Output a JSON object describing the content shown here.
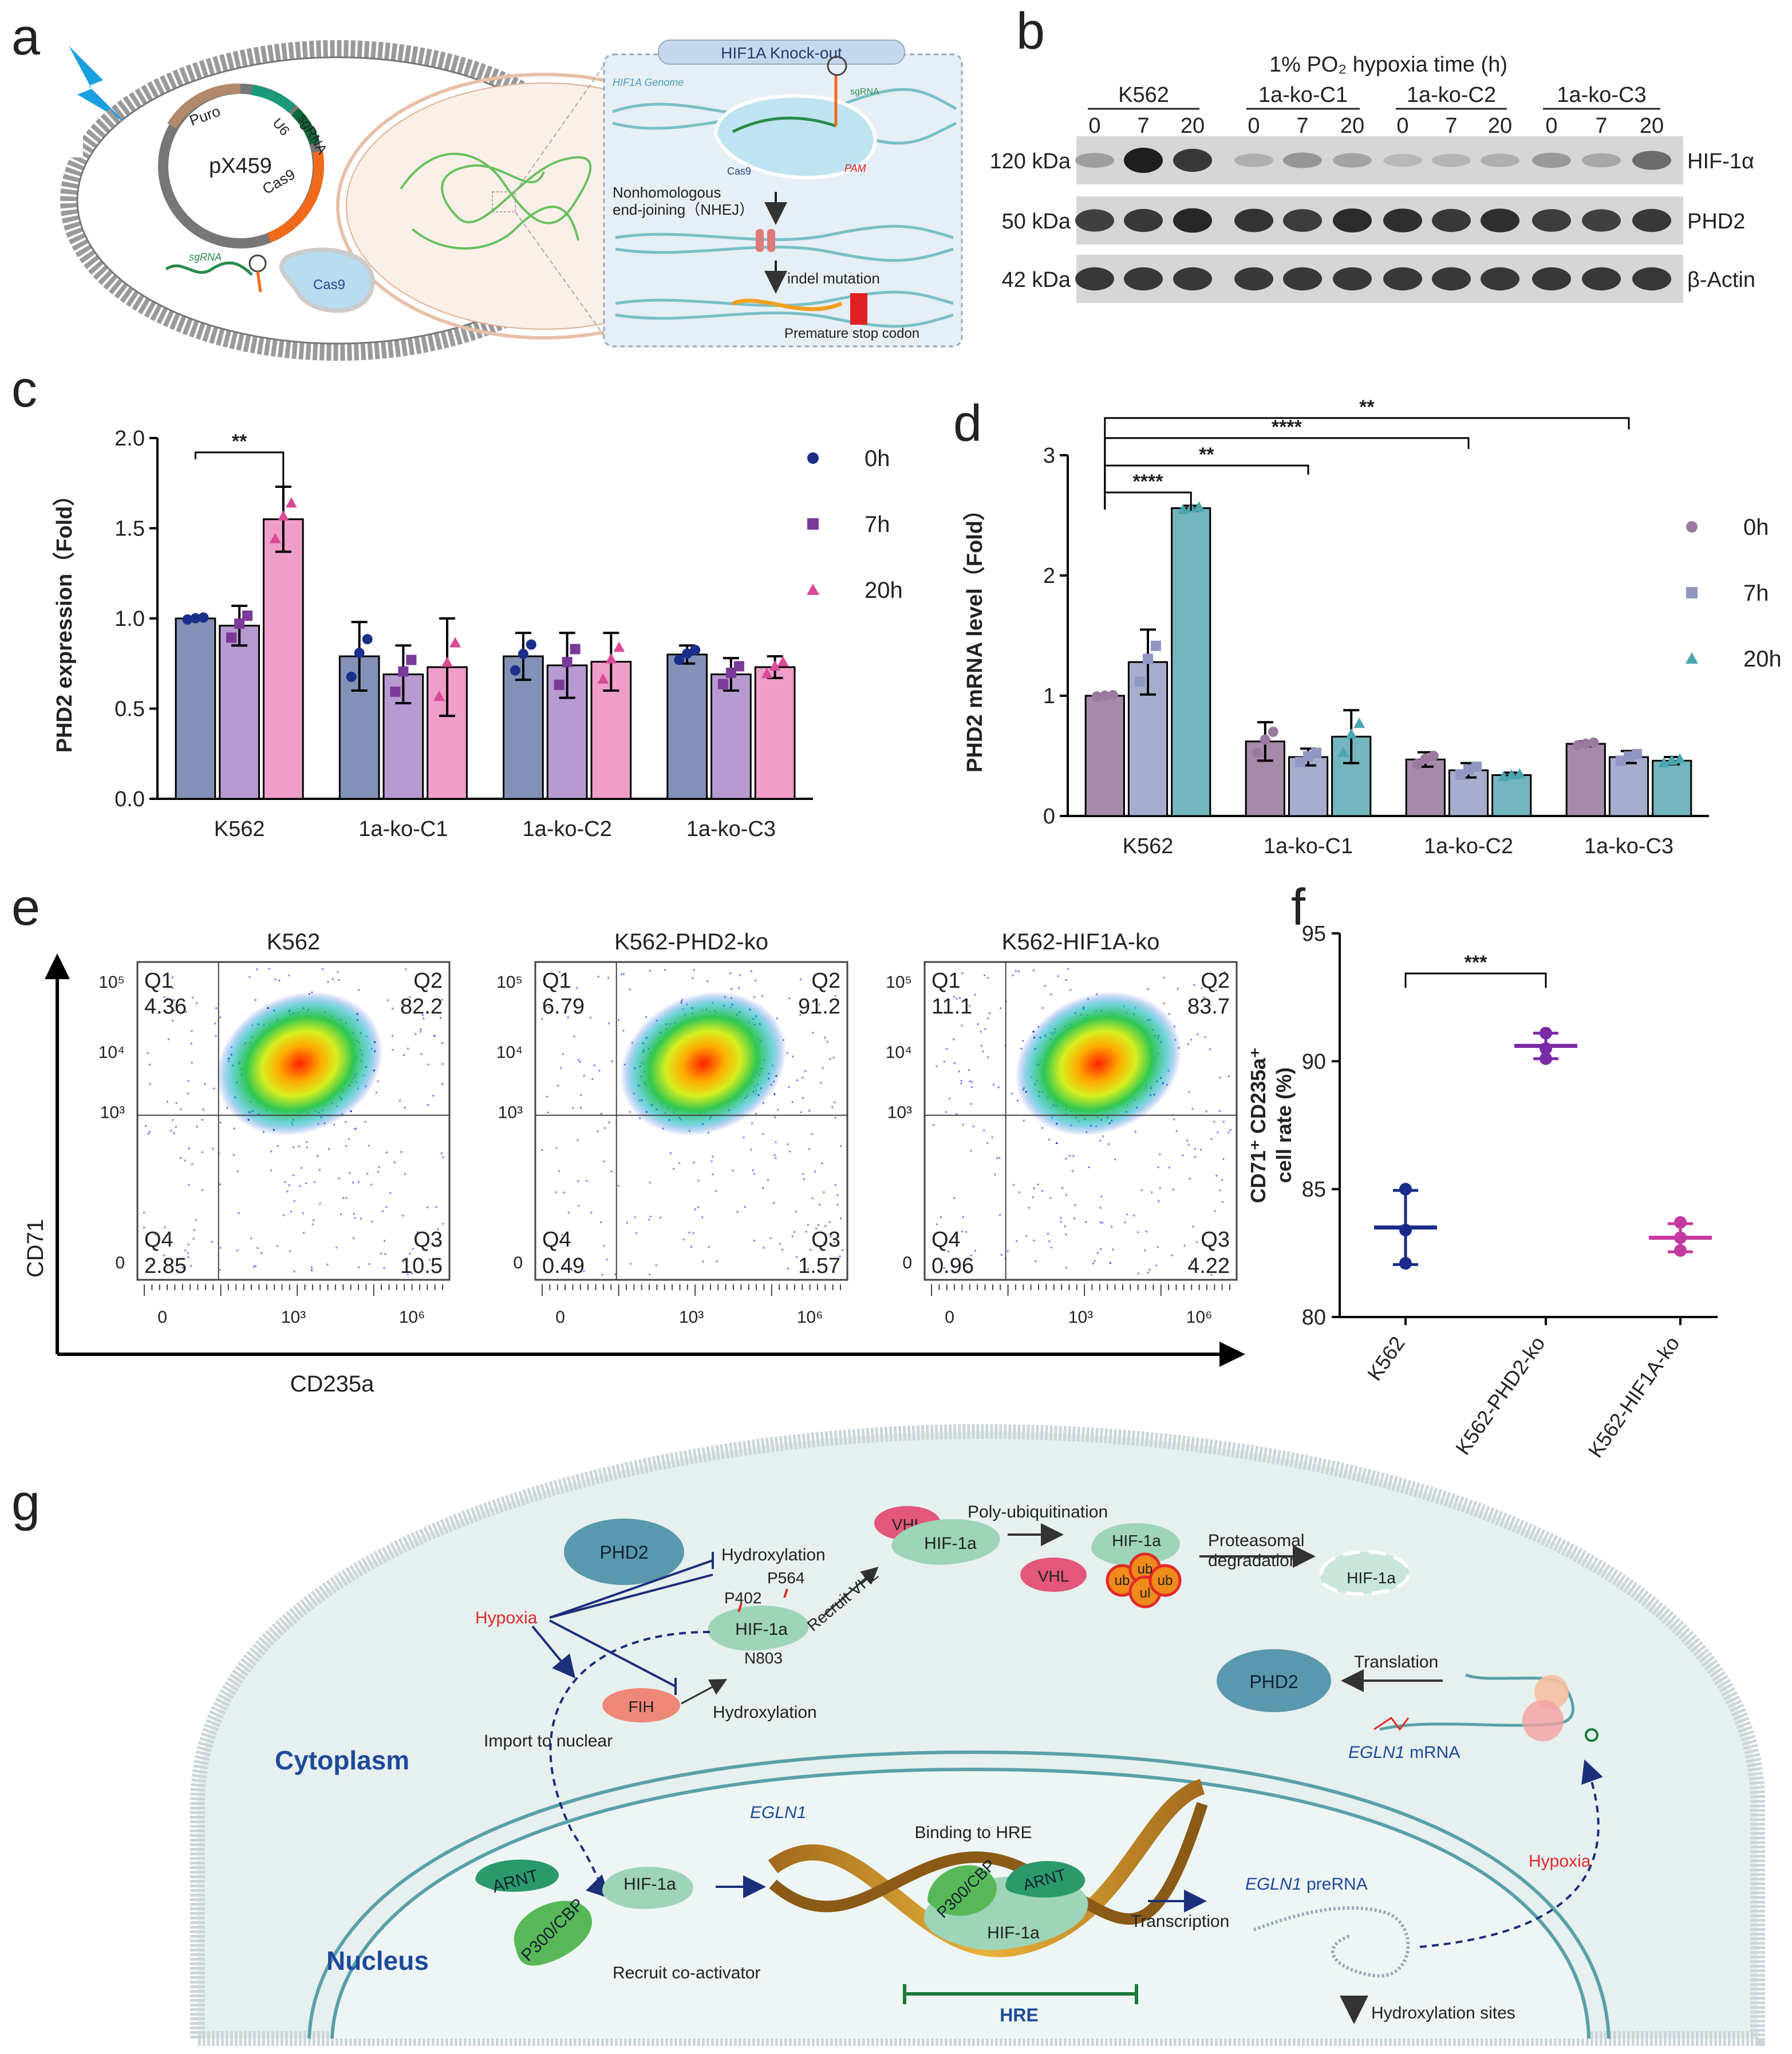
{
  "panel_letters": {
    "a": "a",
    "b": "b",
    "c": "c",
    "d": "d",
    "e": "e",
    "f": "f",
    "g": "g"
  },
  "panel_a": {
    "plasmid_name": "pX459",
    "puro": "Puro",
    "u6": "U6",
    "sgrna": "sgRNA",
    "cas9": "Cas9",
    "sgrna_free": "sgRNA",
    "cas9_protein": "Cas9",
    "ko_title": "HIF1A Knock-out",
    "genome_label": "HIF1A Genome",
    "inset_sgrna": "sgRNA",
    "inset_cas9": "Cas9",
    "pam": "PAM",
    "nhej_line1": "Nonhomologous",
    "nhej_line2": "end-joining（NHEJ）",
    "indel": "indel mutation",
    "stop": "Premature stop codon"
  },
  "panel_b": {
    "header": "1% PO₂ hypoxia time (h)",
    "groups": [
      {
        "name": "K562",
        "times": [
          "0",
          "7",
          "20"
        ]
      },
      {
        "name": "1a-ko-C1",
        "times": [
          "0",
          "7",
          "20"
        ]
      },
      {
        "name": "1a-ko-C2",
        "times": [
          "0",
          "7",
          "20"
        ]
      },
      {
        "name": "1a-ko-C3",
        "times": [
          "0",
          "7",
          "20"
        ]
      }
    ],
    "blots": [
      {
        "mw": "120 kDa",
        "protein": "HIF-1α",
        "intensity": [
          0.25,
          1.0,
          0.85,
          0.15,
          0.3,
          0.22,
          0.1,
          0.12,
          0.15,
          0.28,
          0.2,
          0.55
        ]
      },
      {
        "mw": "50 kDa",
        "protein": "PHD2",
        "intensity": [
          0.8,
          0.85,
          0.95,
          0.88,
          0.82,
          0.92,
          0.9,
          0.85,
          0.9,
          0.82,
          0.8,
          0.85
        ]
      },
      {
        "mw": "42 kDa",
        "protein": "β-Actin",
        "intensity": [
          0.85,
          0.85,
          0.85,
          0.85,
          0.85,
          0.85,
          0.85,
          0.85,
          0.85,
          0.85,
          0.85,
          0.85
        ]
      }
    ]
  },
  "chart_data": [
    {
      "panel": "c",
      "type": "bar",
      "title": "",
      "ylabel": "PHD2 expression（Fold）",
      "xlabel": "",
      "ylim": [
        0,
        2.0
      ],
      "yticks": [
        "0.0",
        "0.5",
        "1.0",
        "1.5",
        "2.0"
      ],
      "categories": [
        "K562",
        "1a-ko-C1",
        "1a-ko-C2",
        "1a-ko-C3"
      ],
      "series": [
        {
          "name": "0h",
          "color": "#8491b6",
          "dot": "#1a2f8a",
          "values": [
            1.0,
            0.79,
            0.79,
            0.8
          ],
          "errors": [
            0.01,
            0.19,
            0.13,
            0.05
          ]
        },
        {
          "name": "7h",
          "color": "#b69ad0",
          "dot": "#7a3a9a",
          "values": [
            0.96,
            0.69,
            0.74,
            0.69
          ],
          "errors": [
            0.11,
            0.16,
            0.18,
            0.09
          ]
        },
        {
          "name": "20h",
          "color": "#ee9ec9",
          "dot": "#d84b97",
          "values": [
            1.55,
            0.73,
            0.76,
            0.73
          ],
          "errors": [
            0.18,
            0.27,
            0.16,
            0.06
          ]
        }
      ],
      "significance": [
        {
          "label": "**",
          "from": "K562 0h",
          "to": "K562 20h"
        }
      ],
      "legend_position": "right"
    },
    {
      "panel": "d",
      "type": "bar",
      "title": "",
      "ylabel": "PHD2 mRNA level（Fold）",
      "xlabel": "",
      "ylim": [
        0,
        3
      ],
      "yticks": [
        "0",
        "1",
        "2",
        "3"
      ],
      "categories": [
        "K562",
        "1a-ko-C1",
        "1a-ko-C2",
        "1a-ko-C3"
      ],
      "series": [
        {
          "name": "0h",
          "color": "#a68aa9",
          "dot": "#9a7a9e",
          "values": [
            1.0,
            0.62,
            0.47,
            0.6
          ],
          "errors": [
            0.01,
            0.16,
            0.06,
            0.02
          ]
        },
        {
          "name": "7h",
          "color": "#a7adcc",
          "dot": "#8f97c2",
          "values": [
            1.28,
            0.49,
            0.38,
            0.49
          ],
          "errors": [
            0.27,
            0.07,
            0.06,
            0.05
          ]
        },
        {
          "name": "20h",
          "color": "#74b6be",
          "dot": "#4aa6b0",
          "values": [
            2.56,
            0.66,
            0.34,
            0.46
          ],
          "errors": [
            0.02,
            0.22,
            0.02,
            0.03
          ]
        }
      ],
      "significance": [
        {
          "label": "****",
          "from": "K562 0h",
          "to": "K562 20h"
        },
        {
          "label": "**",
          "from": "K562 0h",
          "to": "1a-ko-C1"
        },
        {
          "label": "****",
          "from": "K562 0h",
          "to": "1a-ko-C2"
        },
        {
          "label": "**",
          "from": "K562 0h",
          "to": "1a-ko-C3"
        }
      ],
      "legend_position": "right"
    },
    {
      "panel": "e",
      "type": "scatter",
      "xlabel": "CD235a",
      "ylabel": "CD71",
      "xticks": [
        "0",
        "10³",
        "10⁶"
      ],
      "yticks": [
        "0",
        "10³",
        "10⁴",
        "10⁵"
      ],
      "plots": [
        {
          "title": "K562",
          "Q1": "4.36",
          "Q2": "82.2",
          "Q3": "10.5",
          "Q4": "2.85"
        },
        {
          "title": "K562-PHD2-ko",
          "Q1": "6.79",
          "Q2": "91.2",
          "Q3": "1.57",
          "Q4": "0.49"
        },
        {
          "title": "K562-HIF1A-ko",
          "Q1": "11.1",
          "Q2": "83.7",
          "Q3": "4.22",
          "Q4": "0.96"
        }
      ],
      "quadrant_labels": [
        "Q1",
        "Q2",
        "Q3",
        "Q4"
      ]
    },
    {
      "panel": "f",
      "type": "scatter",
      "ylabel_line1": "CD71⁺ CD235a⁺",
      "ylabel_line2": "cell rate (%)",
      "ylim": [
        80,
        95
      ],
      "yticks": [
        "80",
        "85",
        "90",
        "95"
      ],
      "categories": [
        "K562",
        "K562-PHD2-ko",
        "K562-HIF1A-ko"
      ],
      "colors": [
        "#1a2a8a",
        "#7a2aa8",
        "#c43a9e"
      ],
      "points": [
        [
          85.0,
          83.4,
          82.1
        ],
        [
          91.1,
          90.5,
          90.1
        ],
        [
          83.7,
          83.1,
          82.6
        ]
      ],
      "means": [
        83.5,
        90.6,
        83.1
      ],
      "sd": [
        1.45,
        0.5,
        0.55
      ],
      "significance": [
        {
          "label": "***",
          "from": "K562",
          "to": "K562-PHD2-ko"
        }
      ]
    }
  ],
  "panel_g": {
    "cytoplasm": "Cytoplasm",
    "nucleus": "Nucleus",
    "phd2": "PHD2",
    "hypoxia": "Hypoxia",
    "fih": "FIH",
    "hydroxylation1": "Hydroxylation",
    "hydroxylation2": "Hydroxylation",
    "p402": "P402",
    "p564": "P564",
    "n803": "N803",
    "hif1a": "HIF-1a",
    "recruit_vhl": "Recruit VHL",
    "vhl": "VHL",
    "poly_ub": "Poly-ubiquitination",
    "ub": "ub",
    "ul": "ul",
    "proteasomal1": "Proteasomal",
    "proteasomal2": "degradation",
    "import": "Import to nuclear",
    "translation": "Translation",
    "egln1_mrna_italic": "EGLN1",
    "mrna_suffix": " mRNA",
    "hypoxia2": "Hypoxia",
    "arnt": "ARNT",
    "p300": "P300/CBP",
    "recruit_coact": "Recruit co-activator",
    "egln1": "EGLN1",
    "binding_hre": "Binding to HRE",
    "hre": "HRE",
    "transcription": "Transcription",
    "egln1_pre_italic": "EGLN1",
    "prerna_suffix": " preRNA",
    "hydroxylation_sites": "Hydroxylation sites"
  }
}
